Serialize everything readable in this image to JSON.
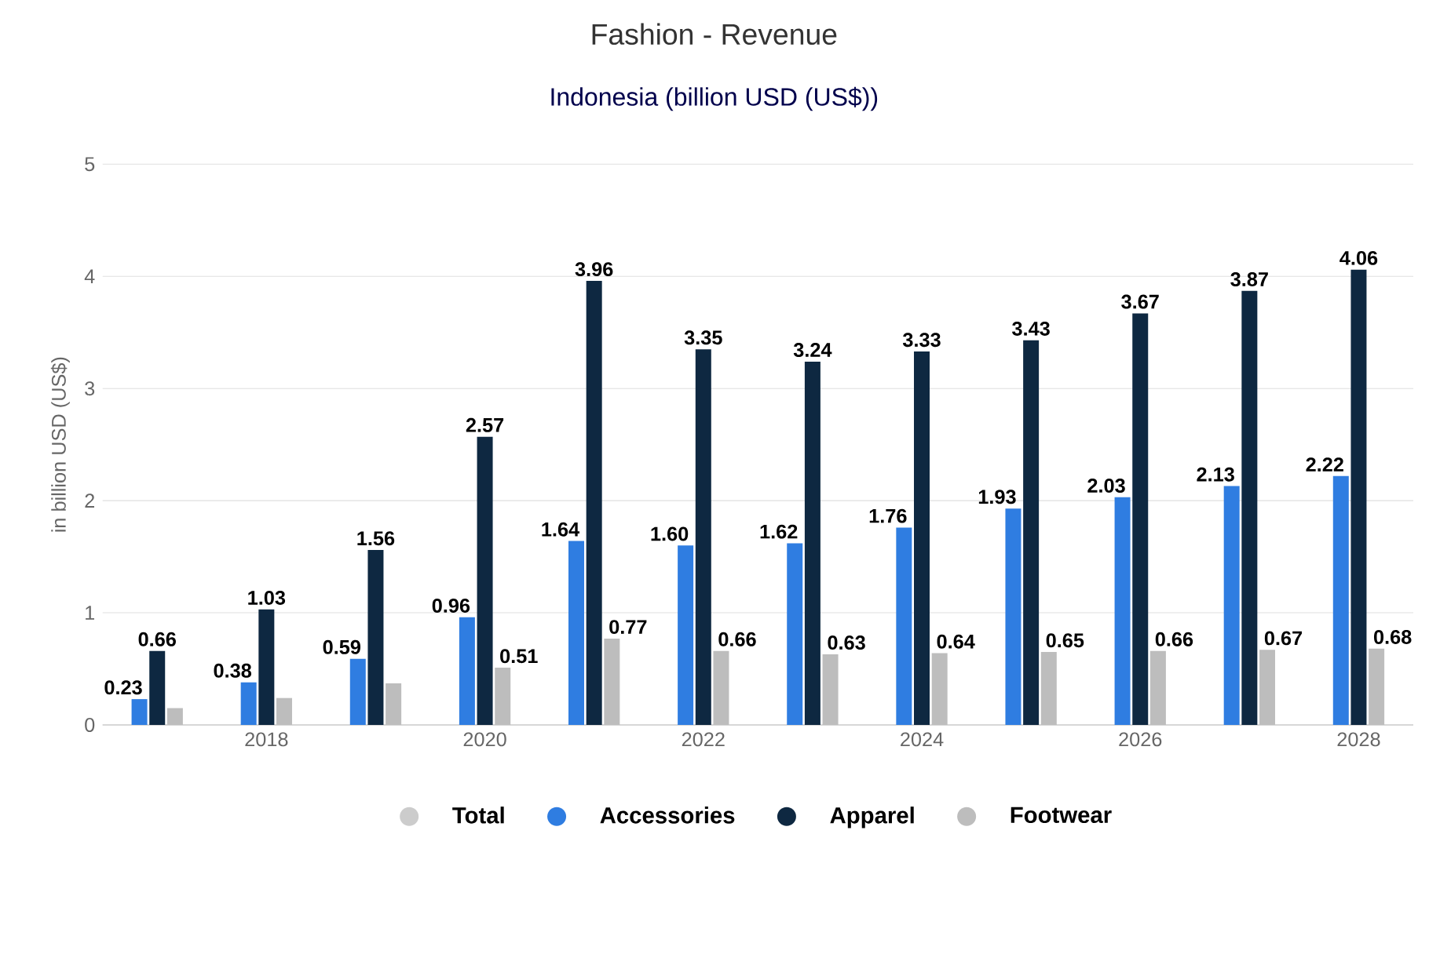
{
  "chart_data": {
    "type": "bar",
    "title": "Fashion - Revenue",
    "subtitle": "Indonesia (billion USD (US$))",
    "ylabel": "in billion USD (US$)",
    "categories": [
      null,
      "2018",
      null,
      "2020",
      null,
      "2022",
      null,
      "2024",
      null,
      "2026",
      null,
      "2028"
    ],
    "series": [
      {
        "name": "Total",
        "color": "#cccccc",
        "values": [
          null,
          null,
          null,
          null,
          null,
          null,
          null,
          null,
          null,
          null,
          null,
          null
        ]
      },
      {
        "name": "Accessories",
        "color": "#2f7de1",
        "values": [
          0.23,
          0.38,
          0.59,
          0.96,
          1.64,
          1.6,
          1.62,
          1.76,
          1.93,
          2.03,
          2.13,
          2.22
        ],
        "value_labels": [
          "0.23",
          "0.38",
          "0.59",
          "0.96",
          "1.64",
          "1.60",
          "1.62",
          "1.76",
          "1.93",
          "2.03",
          "2.13",
          "2.22"
        ]
      },
      {
        "name": "Apparel",
        "color": "#0e2841",
        "values": [
          0.66,
          1.03,
          1.56,
          2.57,
          3.96,
          3.35,
          3.24,
          3.33,
          3.43,
          3.67,
          3.87,
          4.06
        ],
        "value_labels": [
          "0.66",
          "1.03",
          "1.56",
          "2.57",
          "3.96",
          "3.35",
          "3.24",
          "3.33",
          "3.43",
          "3.67",
          "3.87",
          "4.06"
        ]
      },
      {
        "name": "Footwear",
        "color": "#bdbdbd",
        "values": [
          0.15,
          0.24,
          0.37,
          0.51,
          0.77,
          0.66,
          0.63,
          0.64,
          0.65,
          0.66,
          0.67,
          0.68
        ],
        "value_labels": [
          null,
          null,
          null,
          "0.51",
          "0.77",
          "0.66",
          "0.63",
          "0.64",
          "0.65",
          "0.66",
          "0.67",
          "0.68"
        ]
      }
    ],
    "ylim": [
      0,
      5
    ],
    "yticks": [
      0,
      1,
      2,
      3,
      4,
      5
    ],
    "grid": "y",
    "legend": "bottom"
  }
}
